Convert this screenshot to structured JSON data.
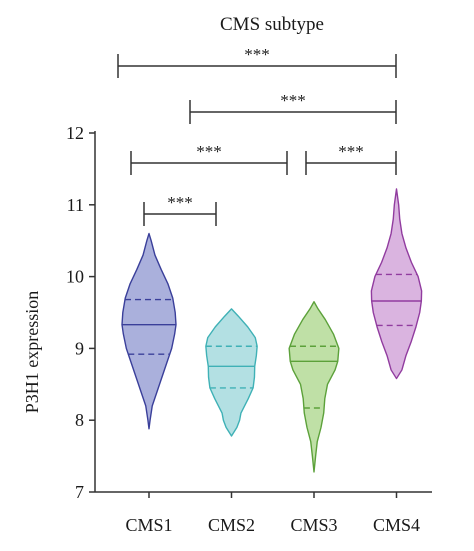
{
  "chart_data": {
    "type": "violin",
    "title": "CMS subtype",
    "xlabel": "",
    "ylabel": "P3H1 expression",
    "ylim": [
      7,
      12
    ],
    "yticks": [
      "7",
      "8",
      "9",
      "10",
      "11",
      "12"
    ],
    "grid": false,
    "categories": [
      "CMS1",
      "CMS2",
      "CMS3",
      "CMS4"
    ],
    "series": [
      {
        "category": "CMS1",
        "fill": "#aab0dc",
        "stroke": "#3a3f9a",
        "min": 7.88,
        "max": 10.6,
        "q1": 8.92,
        "median": 9.33,
        "q3": 9.68,
        "profile": [
          [
            7.88,
            0.0
          ],
          [
            8.0,
            0.04
          ],
          [
            8.2,
            0.12
          ],
          [
            8.4,
            0.3
          ],
          [
            8.6,
            0.48
          ],
          [
            8.8,
            0.66
          ],
          [
            9.0,
            0.84
          ],
          [
            9.2,
            0.95
          ],
          [
            9.33,
            1.0
          ],
          [
            9.5,
            0.97
          ],
          [
            9.7,
            0.88
          ],
          [
            9.9,
            0.7
          ],
          [
            10.1,
            0.45
          ],
          [
            10.3,
            0.22
          ],
          [
            10.5,
            0.08
          ],
          [
            10.6,
            0.0
          ]
        ]
      },
      {
        "category": "CMS2",
        "fill": "#b3e0e3",
        "stroke": "#3fb1b6",
        "min": 7.78,
        "max": 9.55,
        "q1": 8.45,
        "median": 8.75,
        "q3": 9.03,
        "profile": [
          [
            7.78,
            0.0
          ],
          [
            7.9,
            0.2
          ],
          [
            8.0,
            0.3
          ],
          [
            8.1,
            0.35
          ],
          [
            8.3,
            0.62
          ],
          [
            8.45,
            0.8
          ],
          [
            8.6,
            0.85
          ],
          [
            8.75,
            0.86
          ],
          [
            8.9,
            0.92
          ],
          [
            9.03,
            0.95
          ],
          [
            9.15,
            0.88
          ],
          [
            9.3,
            0.6
          ],
          [
            9.45,
            0.25
          ],
          [
            9.55,
            0.0
          ]
        ]
      },
      {
        "category": "CMS3",
        "fill": "#bfe0a6",
        "stroke": "#5ca13a",
        "min": 7.28,
        "max": 9.65,
        "q1": 8.17,
        "median": 8.82,
        "q3": 9.03,
        "profile": [
          [
            7.28,
            0.0
          ],
          [
            7.5,
            0.06
          ],
          [
            7.7,
            0.12
          ],
          [
            7.9,
            0.26
          ],
          [
            8.1,
            0.36
          ],
          [
            8.3,
            0.4
          ],
          [
            8.5,
            0.5
          ],
          [
            8.7,
            0.78
          ],
          [
            8.82,
            0.88
          ],
          [
            9.0,
            0.92
          ],
          [
            9.2,
            0.72
          ],
          [
            9.4,
            0.42
          ],
          [
            9.55,
            0.15
          ],
          [
            9.65,
            0.0
          ]
        ]
      },
      {
        "category": "CMS4",
        "fill": "#dab4e0",
        "stroke": "#913c9f",
        "min": 8.58,
        "max": 11.22,
        "q1": 9.32,
        "median": 9.66,
        "q3": 10.03,
        "profile": [
          [
            8.58,
            0.0
          ],
          [
            8.7,
            0.2
          ],
          [
            8.9,
            0.35
          ],
          [
            9.1,
            0.55
          ],
          [
            9.3,
            0.72
          ],
          [
            9.5,
            0.86
          ],
          [
            9.66,
            0.92
          ],
          [
            9.8,
            0.93
          ],
          [
            10.0,
            0.8
          ],
          [
            10.2,
            0.55
          ],
          [
            10.4,
            0.35
          ],
          [
            10.6,
            0.2
          ],
          [
            10.8,
            0.12
          ],
          [
            11.0,
            0.08
          ],
          [
            11.22,
            0.0
          ]
        ]
      }
    ],
    "significance": [
      {
        "from": "CMS1",
        "to": "CMS2",
        "label": "***"
      },
      {
        "from": "CMS1",
        "to": "CMS3",
        "label": "***"
      },
      {
        "from": "CMS3",
        "to": "CMS4",
        "label": "***"
      },
      {
        "from": "CMS2",
        "to": "CMS4",
        "label": "***"
      },
      {
        "from": "CMS1",
        "to": "CMS4",
        "label": "***"
      }
    ],
    "colors": {
      "axis": "#333333",
      "bracket": "#333333"
    }
  }
}
